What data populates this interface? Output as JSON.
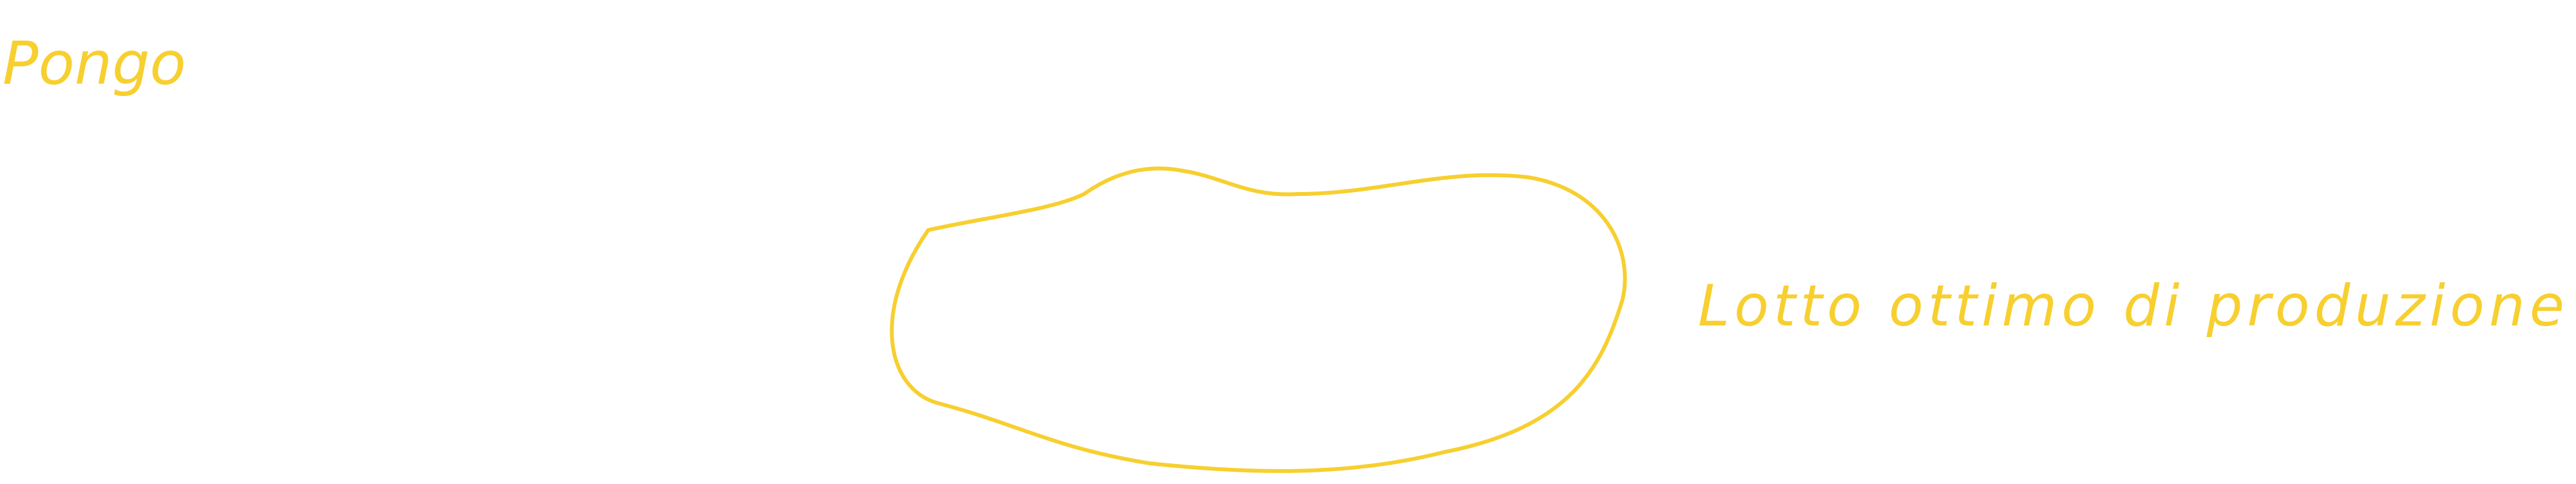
{
  "note": {
    "title": "Pongo",
    "annotation": "Lotto ottimo di produzione"
  }
}
